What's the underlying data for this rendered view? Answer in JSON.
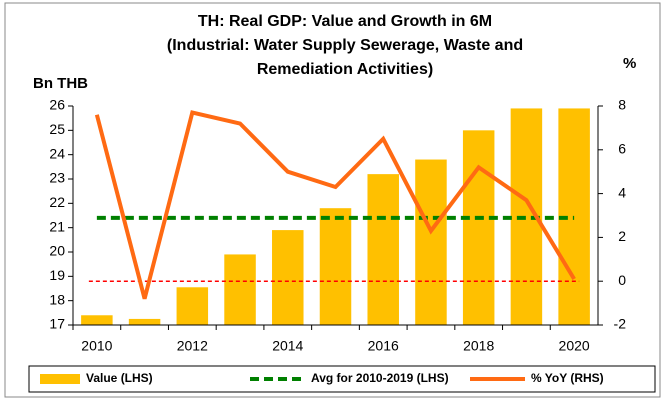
{
  "chart_data": {
    "type": "bar_line",
    "title": [
      "TH: Real GDP: Value and Growth in 6M",
      "(Industrial: Water Supply Sewerage, Waste and",
      "Remediation Activities)"
    ],
    "y_label": "Bn THB",
    "y2_label": "%",
    "categories": [
      "2010",
      null,
      "2012",
      null,
      "2014",
      null,
      "2016",
      null,
      "2018",
      null,
      "2020"
    ],
    "series": [
      {
        "name": "Value (LHS)",
        "kind": "bar",
        "color": "#ffc000",
        "values": [
          17.4,
          17.25,
          18.55,
          19.9,
          20.9,
          21.8,
          23.2,
          23.8,
          25.0,
          25.9,
          25.9
        ]
      },
      {
        "name": "Avg for 2010-2019 (LHS)",
        "kind": "dashed",
        "color": "#008000",
        "values": [
          21.4,
          21.4,
          21.4,
          21.4,
          21.4,
          21.4,
          21.4,
          21.4,
          21.4,
          21.4,
          21.4
        ]
      },
      {
        "name": "% YoY (RHS)",
        "kind": "line",
        "axis": "y2",
        "color": "#ff6a13",
        "values": [
          7.6,
          -0.8,
          7.7,
          7.2,
          5.0,
          4.3,
          6.5,
          2.3,
          5.2,
          3.7,
          0.1
        ]
      }
    ],
    "reference_line": {
      "value": 0,
      "axis": "y2",
      "color": "#ff0000"
    },
    "ylim": [
      17,
      26
    ],
    "yticks": [
      17,
      18,
      19,
      20,
      21,
      22,
      23,
      24,
      25,
      26
    ],
    "y2lim": [
      -2,
      8
    ],
    "y2ticks": [
      -2,
      0,
      2,
      4,
      6,
      8
    ]
  }
}
